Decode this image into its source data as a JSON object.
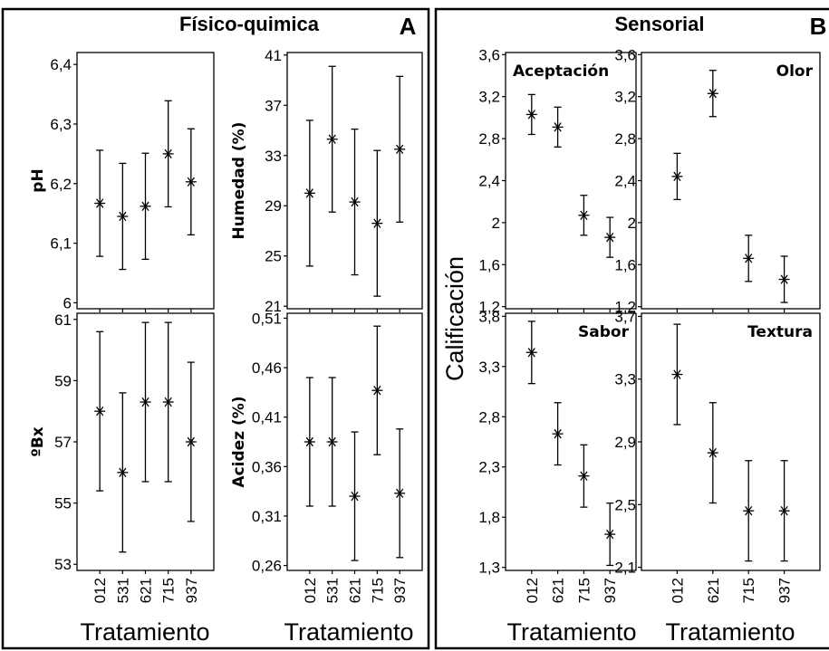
{
  "panels": {
    "A": {
      "title": "Físico-quimica",
      "letter": "A"
    },
    "B": {
      "title": "Sensorial",
      "letter": "B"
    }
  },
  "shared_y_label": "Calificación",
  "chart_data": [
    {
      "type": "scatter",
      "panel": "A",
      "title": "",
      "ylabel": "pH",
      "xlabel": "",
      "categories": [
        "012",
        "531",
        "621",
        "715",
        "937"
      ],
      "ylim": [
        5.99,
        6.42
      ],
      "yticks": [
        6,
        6.1,
        6.2,
        6.3,
        6.4
      ],
      "ytick_labels": [
        "6",
        "6,1",
        "6,2",
        "6,3",
        "6,4"
      ],
      "series": [
        {
          "values": [
            6.167,
            6.145,
            6.162,
            6.25,
            6.203
          ],
          "lower": [
            6.078,
            6.056,
            6.073,
            6.161,
            6.114
          ],
          "upper": [
            6.256,
            6.234,
            6.251,
            6.339,
            6.292
          ]
        }
      ]
    },
    {
      "type": "scatter",
      "panel": "A",
      "title": "",
      "ylabel": "Humedad (%)",
      "xlabel": "",
      "categories": [
        "012",
        "531",
        "621",
        "715",
        "937"
      ],
      "ylim": [
        20.8,
        41.2
      ],
      "yticks": [
        21,
        25,
        29,
        33,
        37,
        41
      ],
      "ytick_labels": [
        "21",
        "25",
        "29",
        "33",
        "37",
        "41"
      ],
      "series": [
        {
          "values": [
            30.0,
            34.3,
            29.3,
            27.6,
            33.5
          ],
          "lower": [
            24.2,
            28.5,
            23.5,
            21.8,
            27.7
          ],
          "upper": [
            35.8,
            40.1,
            35.1,
            33.4,
            39.3
          ]
        }
      ]
    },
    {
      "type": "scatter",
      "panel": "A",
      "title": "",
      "ylabel": "ºBx",
      "xlabel": "Tratamiento",
      "categories": [
        "012",
        "531",
        "621",
        "715",
        "937"
      ],
      "ylim": [
        52.8,
        61.2
      ],
      "yticks": [
        53,
        55,
        57,
        59,
        61
      ],
      "ytick_labels": [
        "53",
        "55",
        "57",
        "59",
        "61"
      ],
      "series": [
        {
          "values": [
            58.0,
            56.0,
            58.3,
            58.3,
            57.0
          ],
          "lower": [
            55.4,
            53.4,
            55.7,
            55.7,
            54.4
          ],
          "upper": [
            60.6,
            58.6,
            60.9,
            60.9,
            59.6
          ]
        }
      ]
    },
    {
      "type": "scatter",
      "panel": "A",
      "title": "",
      "ylabel": "Acidez (%)",
      "xlabel": "Tratamiento",
      "categories": [
        "012",
        "531",
        "621",
        "715",
        "937"
      ],
      "ylim": [
        0.255,
        0.515
      ],
      "yticks": [
        0.26,
        0.31,
        0.36,
        0.41,
        0.46,
        0.51
      ],
      "ytick_labels": [
        "0,26",
        "0,31",
        "0,36",
        "0,41",
        "0,46",
        "0,51"
      ],
      "series": [
        {
          "values": [
            0.385,
            0.385,
            0.33,
            0.437,
            0.333
          ],
          "lower": [
            0.32,
            0.32,
            0.265,
            0.372,
            0.268
          ],
          "upper": [
            0.45,
            0.45,
            0.395,
            0.502,
            0.398
          ]
        }
      ]
    },
    {
      "type": "scatter",
      "panel": "B",
      "title": "Aceptación",
      "ylabel": "",
      "xlabel": "",
      "categories": [
        "012",
        "621",
        "715",
        "937"
      ],
      "ylim": [
        1.18,
        3.62
      ],
      "yticks": [
        1.2,
        1.6,
        2,
        2.4,
        2.8,
        3.2,
        3.6
      ],
      "ytick_labels": [
        "1,2",
        "1,6",
        "2",
        "2,4",
        "2,8",
        "3,2",
        "3,6"
      ],
      "series": [
        {
          "values": [
            3.03,
            2.91,
            2.07,
            1.86
          ],
          "lower": [
            2.84,
            2.72,
            1.88,
            1.67
          ],
          "upper": [
            3.22,
            3.1,
            2.26,
            2.05
          ]
        }
      ]
    },
    {
      "type": "scatter",
      "panel": "B",
      "title": "Olor",
      "ylabel": "",
      "xlabel": "",
      "categories": [
        "012",
        "621",
        "715",
        "937"
      ],
      "ylim": [
        1.18,
        3.62
      ],
      "yticks": [
        1.2,
        1.6,
        2,
        2.4,
        2.8,
        3.2,
        3.6
      ],
      "ytick_labels": [
        "1,2",
        "1,6",
        "2",
        "2,4",
        "2,8",
        "3,2",
        "3,6"
      ],
      "series": [
        {
          "values": [
            2.44,
            3.23,
            1.66,
            1.46
          ],
          "lower": [
            2.22,
            3.01,
            1.44,
            1.24
          ],
          "upper": [
            2.66,
            3.45,
            1.88,
            1.68
          ]
        }
      ]
    },
    {
      "type": "scatter",
      "panel": "B",
      "title": "Sabor",
      "ylabel": "",
      "xlabel": "Tratamiento",
      "categories": [
        "012",
        "621",
        "715",
        "937"
      ],
      "ylim": [
        1.27,
        3.83
      ],
      "yticks": [
        1.3,
        1.8,
        2.3,
        2.8,
        3.3,
        3.8
      ],
      "ytick_labels": [
        "1,3",
        "1,8",
        "2,3",
        "2,8",
        "3,3",
        "3,8"
      ],
      "series": [
        {
          "values": [
            3.44,
            2.63,
            2.21,
            1.63
          ],
          "lower": [
            3.13,
            2.32,
            1.9,
            1.32
          ],
          "upper": [
            3.75,
            2.94,
            2.52,
            1.94
          ]
        }
      ]
    },
    {
      "type": "scatter",
      "panel": "B",
      "title": "Textura",
      "ylabel": "",
      "xlabel": "Tratamiento",
      "categories": [
        "012",
        "621",
        "715",
        "937"
      ],
      "ylim": [
        2.08,
        3.72
      ],
      "yticks": [
        2.1,
        2.5,
        2.9,
        3.3,
        3.7
      ],
      "ytick_labels": [
        "2,1",
        "2,5",
        "2,9",
        "3,3",
        "3,7"
      ],
      "series": [
        {
          "values": [
            3.33,
            2.83,
            2.46,
            2.46
          ],
          "lower": [
            3.01,
            2.51,
            2.14,
            2.14
          ],
          "upper": [
            3.65,
            3.15,
            2.78,
            2.78
          ]
        }
      ]
    }
  ]
}
